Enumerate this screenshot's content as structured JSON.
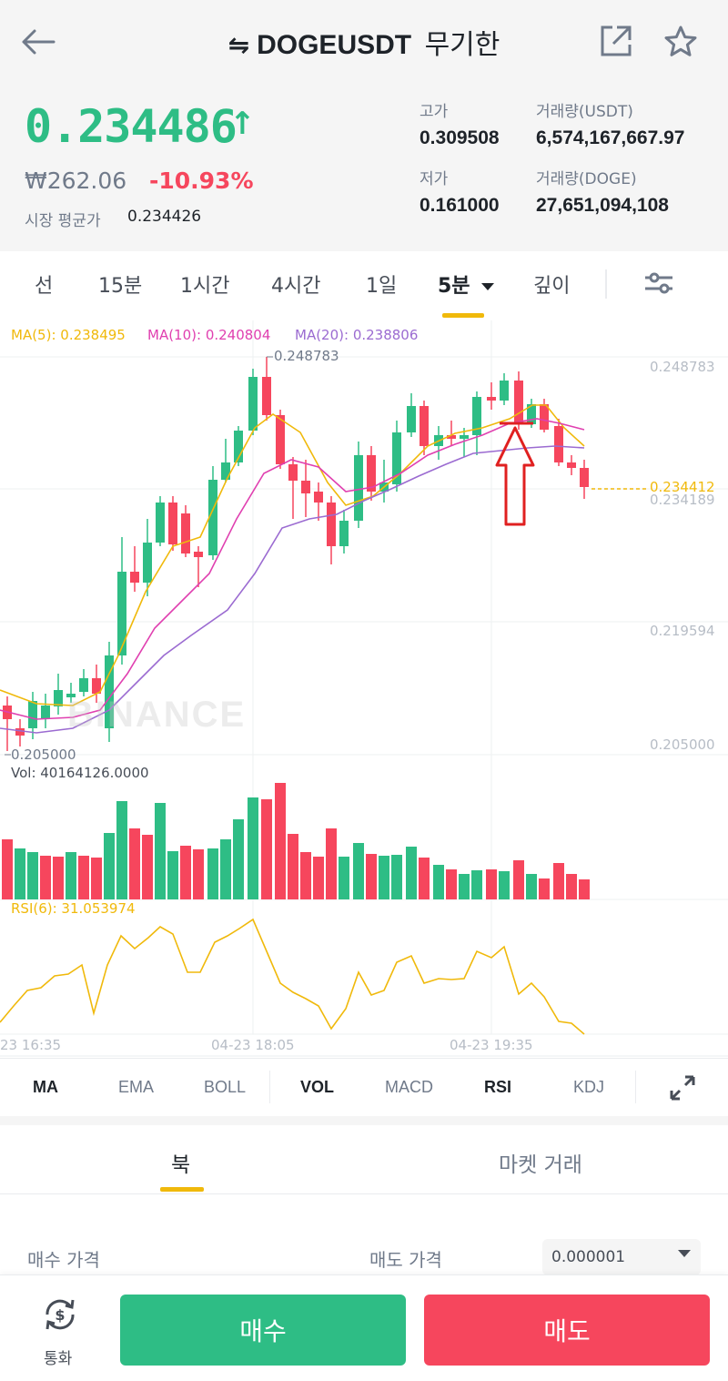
{
  "header": {
    "swap_glyph": "⇋",
    "symbol": "DOGEUSDT",
    "contract_type": "무기한"
  },
  "ticker": {
    "last_price": "0.234486",
    "direction": "↑",
    "krw_price": "₩262.06",
    "change_pct": "-10.93%",
    "mark_price_label": "시장 평균가",
    "mark_price": "0.234426",
    "high_label": "고가",
    "high": "0.309508",
    "low_label": "저가",
    "low": "0.161000",
    "vol_usdt_label": "거래량(USDT)",
    "vol_usdt": "6,574,167,667.97",
    "vol_doge_label": "거래량(DOGE)",
    "vol_doge": "27,651,094,108"
  },
  "tabs": {
    "line": "선",
    "m15": "15분",
    "h1": "1시간",
    "h4": "4시간",
    "d1": "1일",
    "m5": "5분",
    "depth": "깊이"
  },
  "chart": {
    "ma5": "MA(5): 0.238495",
    "ma10": "MA(10): 0.240804",
    "ma20": "MA(20): 0.238806",
    "axis": [
      "0.248783",
      "0.234189",
      "0.219594",
      "0.205000"
    ],
    "high_marker": "0.248783",
    "low_marker": "0.205000",
    "current_price": "0.234412",
    "vol_label": "Vol: 40164126.0000",
    "rsi_label": "RSI(6): 31.053974",
    "times": [
      "23 16:35",
      "04-23 18:05",
      "04-23 19:35"
    ],
    "watermark": "BINANCE",
    "colors": {
      "up": "#2ebd85",
      "down": "#f6465d",
      "ma5": "#f0b90b",
      "ma10": "#e040b0",
      "ma20": "#9b6bd1"
    }
  },
  "indicators": {
    "ma": "MA",
    "ema": "EMA",
    "boll": "BOLL",
    "vol": "VOL",
    "macd": "MACD",
    "rsi": "RSI",
    "kdj": "KDJ"
  },
  "orderbook": {
    "tab_book": "북",
    "tab_trades": "마켓 거래",
    "bid_label": "매수 가격",
    "ask_label": "매도 가격",
    "precision": "0.000001"
  },
  "actions": {
    "convert": "통화",
    "buy": "매수",
    "sell": "매도"
  }
}
